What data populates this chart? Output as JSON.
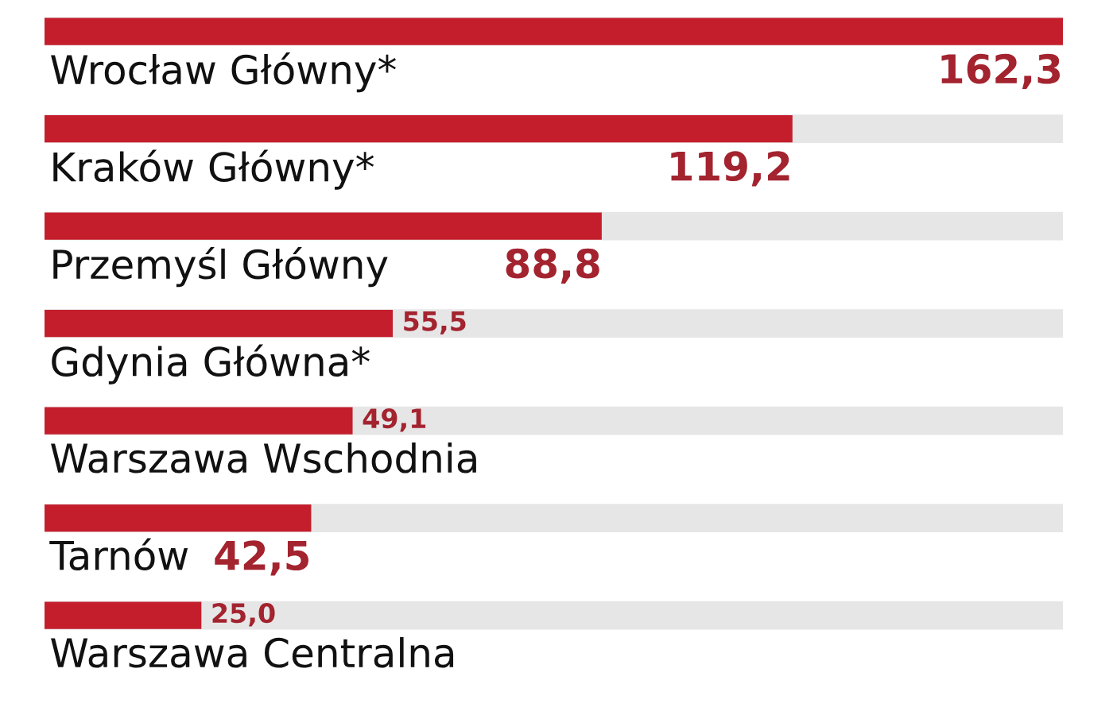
{
  "chart_data": {
    "type": "bar",
    "orientation": "horizontal",
    "categories": [
      "Wrocław Główny*",
      "Kraków Główny*",
      "Przemyśl Główny",
      "Gdynia Główna*",
      "Warszawa Wschodnia",
      "Tarnów",
      "Warszawa Centralna"
    ],
    "values": [
      162.3,
      119.2,
      88.8,
      55.5,
      49.1,
      42.5,
      25.0
    ],
    "value_labels": [
      "162,3",
      "119,2",
      "88,8",
      "55,5",
      "49,1",
      "42,5",
      "25,0"
    ],
    "color": "#c41e2d"
  }
}
